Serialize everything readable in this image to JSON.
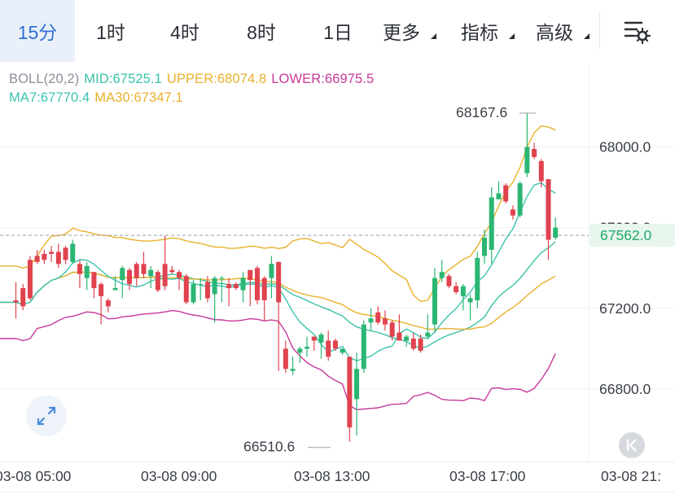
{
  "tabs": [
    {
      "label": "15分",
      "active": true,
      "dropdown": false
    },
    {
      "label": "1时",
      "active": false,
      "dropdown": false
    },
    {
      "label": "4时",
      "active": false,
      "dropdown": false
    },
    {
      "label": "8时",
      "active": false,
      "dropdown": false
    },
    {
      "label": "1日",
      "active": false,
      "dropdown": false
    },
    {
      "label": "更多",
      "active": false,
      "dropdown": true
    },
    {
      "label": "指标",
      "active": false,
      "dropdown": true
    },
    {
      "label": "高级",
      "active": false,
      "dropdown": true
    }
  ],
  "settings_icon": "chart-settings-icon",
  "legend": {
    "boll": "BOLL(20,2)",
    "mid": "MID:67525.1",
    "upper": "UPPER:68074.8",
    "lower": "LOWER:66975.5",
    "ma7": "MA7:67770.4",
    "ma30": "MA30:67347.1"
  },
  "colors": {
    "up": "#2bb673",
    "down": "#e0434e",
    "mid": "#39c2a6",
    "upper": "#e8b12c",
    "lower": "#c6399a",
    "ma7": "#3cc3b0",
    "ma30": "#e8b12c",
    "boll_label": "#8a8f99",
    "price_tag": "#22a86a",
    "price_tag_bg": "#e8f6ee"
  },
  "expand_icon": "expand-arrows-icon",
  "k_icon": "skip-back-icon",
  "chart_data": {
    "type": "candlestick",
    "ylim": [
      66510,
      68280
    ],
    "y_ticks": [
      "68000.0",
      "67600.0",
      "67200.0",
      "66800.0"
    ],
    "x_ticks": [
      "03-08 05:00",
      "03-08 09:00",
      "03-08 13:00",
      "03-08 17:00",
      "03-08 21:"
    ],
    "current_price": "67562.0",
    "current_price_value": 67562.0,
    "max_label": "68167.6",
    "min_label": "66510.6",
    "high_value": 68167.6,
    "low_value": 66510.6,
    "candles": [
      [
        67240,
        67230,
        67330,
        67150
      ],
      [
        67300,
        67210,
        67320,
        67190
      ],
      [
        67440,
        67250,
        67460,
        67240
      ],
      [
        67460,
        67430,
        67490,
        67420
      ],
      [
        67470,
        67440,
        67490,
        67420
      ],
      [
        67480,
        67470,
        67510,
        67430
      ],
      [
        67480,
        67420,
        67520,
        67400
      ],
      [
        67500,
        67440,
        67510,
        67420
      ],
      [
        67430,
        67520,
        67540,
        67420
      ],
      [
        67420,
        67370,
        67440,
        67300
      ],
      [
        67350,
        67410,
        67430,
        67290
      ],
      [
        67380,
        67300,
        67380,
        67250
      ],
      [
        67320,
        67260,
        67330,
        67120
      ],
      [
        67240,
        67210,
        67250,
        67180
      ],
      [
        67290,
        67300,
        67360,
        67290
      ],
      [
        67340,
        67400,
        67410,
        67250
      ],
      [
        67390,
        67320,
        67400,
        67290
      ],
      [
        67420,
        67350,
        67430,
        67310
      ],
      [
        67420,
        67370,
        67480,
        67350
      ],
      [
        67360,
        67390,
        67410,
        67300
      ],
      [
        67380,
        67290,
        67390,
        67280
      ],
      [
        67420,
        67310,
        67560,
        67290
      ],
      [
        67390,
        67380,
        67410,
        67370
      ],
      [
        67380,
        67350,
        67390,
        67290
      ],
      [
        67360,
        67230,
        67370,
        67220
      ],
      [
        67230,
        67320,
        67340,
        67220
      ],
      [
        67320,
        67320,
        67350,
        67240
      ],
      [
        67330,
        67250,
        67360,
        67230
      ],
      [
        67270,
        67350,
        67360,
        67130
      ],
      [
        67350,
        67350,
        67360,
        67230
      ],
      [
        67320,
        67300,
        67350,
        67210
      ],
      [
        67320,
        67300,
        67330,
        67290
      ],
      [
        67290,
        67350,
        67380,
        67230
      ],
      [
        67390,
        67340,
        67380,
        67210
      ],
      [
        67400,
        67240,
        67410,
        67220
      ],
      [
        67350,
        67240,
        67360,
        67140
      ],
      [
        67350,
        67420,
        67460,
        67250
      ],
      [
        67430,
        67230,
        67430,
        66890
      ],
      [
        67000,
        66900,
        67040,
        66880
      ],
      [
        66890,
        66900,
        66960,
        66870
      ],
      [
        66980,
        67000,
        67010,
        66930
      ],
      [
        67000,
        67010,
        67060,
        66960
      ],
      [
        67060,
        67040,
        67060,
        66990
      ],
      [
        67030,
        67070,
        67080,
        66950
      ],
      [
        67040,
        66960,
        67090,
        66940
      ],
      [
        67040,
        67000,
        67050,
        66990
      ],
      [
        66980,
        67000,
        67000,
        66970
      ],
      [
        66960,
        66610,
        66960,
        66540
      ],
      [
        66750,
        66900,
        66980,
        66570
      ],
      [
        66900,
        67120,
        67140,
        66880
      ],
      [
        67130,
        67150,
        67200,
        67090
      ],
      [
        67180,
        67130,
        67210,
        67120
      ],
      [
        67150,
        67120,
        67190,
        67090
      ],
      [
        67130,
        67060,
        67140,
        67040
      ],
      [
        67080,
        67040,
        67170,
        67040
      ],
      [
        67040,
        67060,
        67070,
        67010
      ],
      [
        67050,
        67000,
        67080,
        66990
      ],
      [
        67050,
        66990,
        67070,
        66980
      ],
      [
        67060,
        67080,
        67170,
        67050
      ],
      [
        67120,
        67350,
        67400,
        67080
      ],
      [
        67350,
        67380,
        67440,
        67330
      ],
      [
        67360,
        67310,
        67370,
        67300
      ],
      [
        67310,
        67280,
        67330,
        67270
      ],
      [
        67260,
        67310,
        67320,
        67190
      ],
      [
        67230,
        67250,
        67270,
        67140
      ],
      [
        67240,
        67450,
        67480,
        67200
      ],
      [
        67460,
        67550,
        67590,
        67420
      ],
      [
        67490,
        67750,
        67800,
        67420
      ],
      [
        67740,
        67770,
        67830,
        67760
      ],
      [
        67810,
        67730,
        67820,
        67720
      ],
      [
        67690,
        67660,
        67710,
        67640
      ],
      [
        67660,
        67820,
        67830,
        67650
      ],
      [
        67870,
        68000,
        68170,
        67850
      ],
      [
        67990,
        67950,
        68020,
        67940
      ],
      [
        67930,
        67830,
        67940,
        67800
      ],
      [
        67840,
        67540,
        67840,
        67440
      ],
      [
        67550,
        67600,
        67650,
        67540
      ]
    ]
  }
}
